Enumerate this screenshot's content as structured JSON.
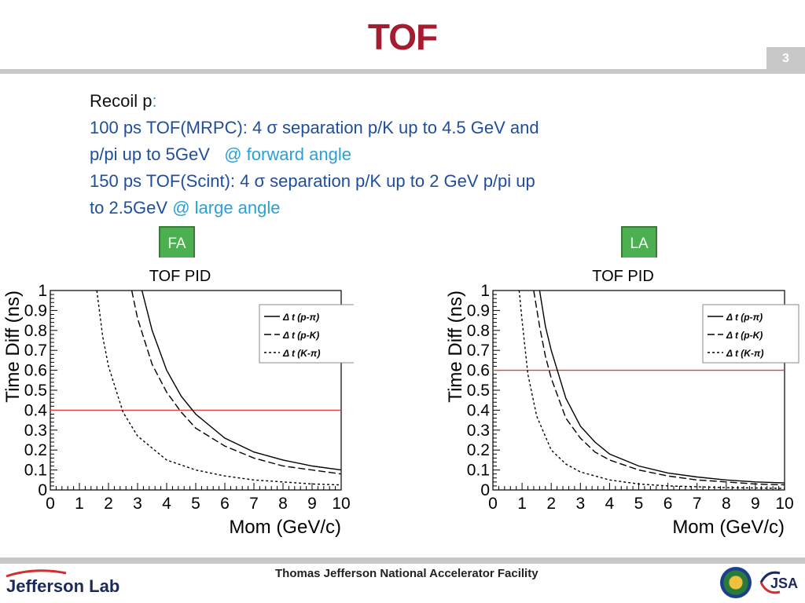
{
  "slide": {
    "title": "TOF",
    "page_number": "3"
  },
  "body": {
    "line1_a": "Recoil p",
    "line1_b": ":",
    "line2": "100 ps TOF(MRPC):  4 σ separation p/K up to 4.5 GeV and",
    "line3_a": "p/pi up to 5GeV   ",
    "line3_b": "@ forward angle",
    "line4": "150 ps TOF(Scint): 4 σ separation p/K up to 2 GeV p/pi up",
    "line5_a": "to 2.5GeV ",
    "line5_b": "@ large angle"
  },
  "tags": {
    "fa": "FA",
    "la": "LA"
  },
  "footer": {
    "facility": "Thomas Jefferson National Accelerator Facility",
    "lab_logo": "Jefferson Lab",
    "jsa_logo": "JSA"
  },
  "colors": {
    "title": "#a51c30",
    "body_blue": "#1f4e9c",
    "accent_blue": "#2aa0d8",
    "tag_green": "#4caf50",
    "threshold_red": "#e0403c"
  },
  "chart_data": [
    {
      "type": "line",
      "title": "TOF PID",
      "xlabel": "Mom (GeV/c)",
      "ylabel": "Time Diff (ns)",
      "xlim": [
        0,
        10
      ],
      "ylim": [
        0,
        1
      ],
      "x_ticks": [
        "0",
        "1",
        "2",
        "3",
        "4",
        "5",
        "6",
        "7",
        "8",
        "9",
        "10"
      ],
      "y_ticks": [
        "0",
        "0.1",
        "0.2",
        "0.3",
        "0.4",
        "0.5",
        "0.6",
        "0.7",
        "0.8",
        "0.9",
        "1"
      ],
      "legend": [
        "Δ t (p-π)",
        "Δ t (p-K)",
        "Δ t (K-π)"
      ],
      "threshold": 0.4,
      "series": [
        {
          "name": "Δ t (p-π)",
          "style": "solid",
          "x": [
            3.15,
            3.5,
            4,
            4.5,
            5,
            6,
            7,
            8,
            9,
            10
          ],
          "values": [
            1.0,
            0.8,
            0.6,
            0.47,
            0.38,
            0.26,
            0.19,
            0.15,
            0.12,
            0.1
          ]
        },
        {
          "name": "Δ t (p-K)",
          "style": "dashed",
          "x": [
            2.8,
            3,
            3.5,
            4,
            4.5,
            5,
            6,
            7,
            8,
            9,
            10
          ],
          "values": [
            1.0,
            0.86,
            0.63,
            0.49,
            0.39,
            0.31,
            0.22,
            0.16,
            0.12,
            0.1,
            0.08
          ]
        },
        {
          "name": "Δ t (K-π)",
          "style": "dotted",
          "x": [
            1.6,
            1.8,
            2,
            2.5,
            3,
            4,
            5,
            6,
            7,
            8,
            9,
            10
          ],
          "values": [
            1.0,
            0.77,
            0.62,
            0.39,
            0.27,
            0.15,
            0.1,
            0.07,
            0.05,
            0.04,
            0.03,
            0.025
          ]
        }
      ]
    },
    {
      "type": "line",
      "title": "TOF PID",
      "xlabel": "Mom (GeV/c)",
      "ylabel": "Time Diff (ns)",
      "xlim": [
        0,
        10
      ],
      "ylim": [
        0,
        1
      ],
      "x_ticks": [
        "0",
        "1",
        "2",
        "3",
        "4",
        "5",
        "6",
        "7",
        "8",
        "9",
        "10"
      ],
      "y_ticks": [
        "0",
        "0.1",
        "0.2",
        "0.3",
        "0.4",
        "0.5",
        "0.6",
        "0.7",
        "0.8",
        "0.9",
        "1"
      ],
      "legend": [
        "Δ t (p-π)",
        "Δ t (p-K)",
        "Δ t (K-π)"
      ],
      "threshold": 0.6,
      "series": [
        {
          "name": "Δ t (p-π)",
          "style": "solid",
          "x": [
            1.6,
            1.8,
            2,
            2.5,
            3,
            3.5,
            4,
            5,
            6,
            7,
            8,
            9,
            10
          ],
          "values": [
            1.0,
            0.82,
            0.7,
            0.46,
            0.32,
            0.24,
            0.18,
            0.12,
            0.085,
            0.065,
            0.05,
            0.04,
            0.035
          ]
        },
        {
          "name": "Δ t (p-K)",
          "style": "dashed",
          "x": [
            1.4,
            1.6,
            1.8,
            2,
            2.5,
            3,
            3.5,
            4,
            5,
            6,
            7,
            8,
            9,
            10
          ],
          "values": [
            1.0,
            0.82,
            0.67,
            0.56,
            0.36,
            0.26,
            0.19,
            0.15,
            0.1,
            0.07,
            0.05,
            0.04,
            0.03,
            0.025
          ]
        },
        {
          "name": "Δ t (K-π)",
          "style": "dotted",
          "x": [
            0.9,
            1,
            1.2,
            1.5,
            2,
            2.5,
            3,
            4,
            5,
            6,
            8,
            10
          ],
          "values": [
            1.0,
            0.85,
            0.58,
            0.37,
            0.2,
            0.13,
            0.09,
            0.05,
            0.03,
            0.02,
            0.012,
            0.008
          ]
        }
      ]
    }
  ]
}
